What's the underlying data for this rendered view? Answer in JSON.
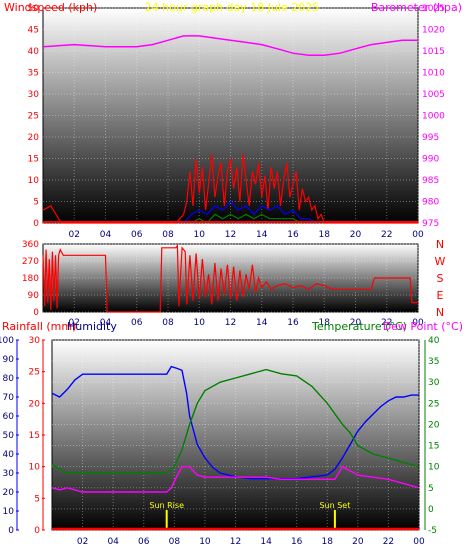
{
  "title": "24 hour graph day   18 Jule 2025",
  "colors": {
    "wind": "#ff0000",
    "gust": "#ff0000",
    "wind_mid": "#0000ff",
    "wind_low": "#008000",
    "barometer": "#ff00ff",
    "direction": "#ff0000",
    "humidity": "#0000ff",
    "temperature": "#008000",
    "dewpoint": "#ff00ff",
    "rain": "#ff0000",
    "title": "#ffff00",
    "sun_marker": "#ffff00"
  },
  "chart_data": [
    {
      "type": "line",
      "title": "24 hour graph day   18 Jule 2025",
      "ylabel": "Windspeed (kph)",
      "y2label": "Barometer (hpa)",
      "x_ticks": [
        "02",
        "04",
        "06",
        "08",
        "10",
        "12",
        "14",
        "16",
        "18",
        "20",
        "22",
        "00"
      ],
      "ylim": [
        0,
        50
      ],
      "yticks": [
        "0",
        "5",
        "10",
        "15",
        "20",
        "25",
        "30",
        "35",
        "40",
        "45",
        "50"
      ],
      "y2lim": [
        975,
        1025
      ],
      "y2ticks": [
        "975",
        "980",
        "985",
        "990",
        "995",
        "1000",
        "1005",
        "1010",
        "1015",
        "1020",
        "1025"
      ],
      "series": [
        {
          "name": "Barometer",
          "axis": "right",
          "x": [
            0,
            2,
            4,
            6,
            7,
            8,
            9,
            10,
            11,
            12,
            13,
            14,
            15,
            16,
            17,
            18,
            19,
            20,
            21,
            22,
            23,
            24
          ],
          "y": [
            1016,
            1016.5,
            1016,
            1016,
            1016.5,
            1017.5,
            1018.5,
            1018.5,
            1018,
            1017.5,
            1017,
            1016.5,
            1015.5,
            1014.5,
            1014,
            1014,
            1014.5,
            1015.5,
            1016.5,
            1017,
            1017.5,
            1017.5
          ]
        },
        {
          "name": "Gust",
          "axis": "left",
          "x": [
            0,
            0.5,
            1,
            1.2,
            7.5,
            8.5,
            9.0,
            9.2,
            9.4,
            9.6,
            9.8,
            10,
            10.2,
            10.4,
            10.6,
            10.8,
            11,
            11.2,
            11.4,
            11.6,
            11.8,
            12,
            12.2,
            12.4,
            12.6,
            12.8,
            13,
            13.2,
            13.4,
            13.6,
            13.8,
            14,
            14.2,
            14.4,
            14.6,
            14.8,
            15,
            15.2,
            15.4,
            15.6,
            15.8,
            16,
            16.2,
            16.4,
            16.6,
            16.8,
            17,
            17.2,
            17.4,
            17.6,
            17.8,
            18,
            24
          ],
          "y": [
            3,
            4,
            1,
            0,
            0,
            0,
            2,
            5,
            12,
            4,
            15,
            7,
            13,
            3,
            9,
            16,
            6,
            11,
            14,
            4,
            12,
            15,
            8,
            13,
            5,
            16,
            10,
            4,
            12,
            9,
            14,
            6,
            11,
            3,
            13,
            8,
            12,
            4,
            10,
            14,
            6,
            9,
            12,
            3,
            8,
            5,
            6,
            3,
            4,
            1,
            2,
            0,
            0
          ]
        },
        {
          "name": "Wind Mid",
          "axis": "left",
          "x": [
            9.0,
            9.5,
            10,
            10.5,
            11,
            11.5,
            12,
            12.5,
            13,
            13.5,
            14,
            14.5,
            15,
            15.5,
            16,
            16.5,
            17,
            17.5
          ],
          "y": [
            0,
            2,
            3,
            2,
            4,
            3,
            5,
            3,
            4,
            2,
            4,
            3,
            4,
            2,
            3,
            1,
            1,
            0
          ]
        },
        {
          "name": "Wind Low",
          "axis": "left",
          "x": [
            9.5,
            10,
            10.5,
            11,
            11.5,
            12,
            12.5,
            13,
            13.5,
            14,
            14.5,
            15,
            15.5,
            16,
            16.5
          ],
          "y": [
            0,
            1,
            0,
            2,
            1,
            2,
            1,
            2,
            1,
            2,
            1,
            1,
            1,
            1,
            0
          ]
        }
      ]
    },
    {
      "type": "line",
      "title": "",
      "dir_labels": [
        "N",
        "W",
        "S",
        "E",
        "N"
      ],
      "x_ticks": [
        "02",
        "04",
        "06",
        "08",
        "10",
        "12",
        "14",
        "16",
        "18",
        "20",
        "22",
        "00"
      ],
      "ylim": [
        0,
        360
      ],
      "yticks": [
        "0",
        "90",
        "180",
        "270",
        "360"
      ],
      "series": [
        {
          "name": "Wind Direction",
          "x": [
            0,
            0.1,
            0.2,
            0.3,
            0.4,
            0.5,
            0.6,
            0.7,
            0.8,
            0.9,
            1.0,
            1.1,
            1.3,
            1.5,
            4.0,
            4.1,
            7.5,
            7.6,
            8.5,
            8.6,
            8.7,
            8.9,
            9.1,
            9.2,
            9.4,
            9.6,
            9.8,
            10,
            10.2,
            10.4,
            10.6,
            10.8,
            11,
            11.2,
            11.4,
            11.6,
            11.8,
            12,
            12.2,
            12.4,
            12.6,
            12.8,
            13,
            13.2,
            13.4,
            13.6,
            13.8,
            14,
            14.3,
            14.6,
            15,
            15.5,
            16,
            16.5,
            17,
            17.5,
            18,
            18.5,
            20,
            21,
            21.2,
            21.5,
            23.5,
            23.6,
            24
          ],
          "y": [
            300,
            30,
            330,
            50,
            280,
            10,
            320,
            60,
            300,
            20,
            300,
            330,
            300,
            300,
            300,
            0,
            0,
            340,
            340,
            350,
            30,
            340,
            320,
            40,
            300,
            60,
            310,
            70,
            280,
            80,
            200,
            40,
            260,
            60,
            230,
            90,
            250,
            70,
            240,
            60,
            220,
            80,
            200,
            120,
            250,
            100,
            180,
            130,
            160,
            120,
            140,
            150,
            130,
            140,
            120,
            150,
            140,
            120,
            120,
            120,
            180,
            180,
            180,
            50,
            50
          ]
        }
      ]
    },
    {
      "type": "line",
      "title": "",
      "ylabel": "Rainfall (mm)",
      "y_humidity_label": "Humidity",
      "y2label": "Temperature (°C)",
      "y2_dew_label": "Dew Point (°C)",
      "x_ticks": [
        "02",
        "04",
        "06",
        "08",
        "10",
        "12",
        "14",
        "16",
        "18",
        "20",
        "22",
        "00"
      ],
      "rain_lim": [
        0,
        30
      ],
      "rain_ticks": [
        "0",
        "5",
        "10",
        "15",
        "20",
        "25",
        "30"
      ],
      "humidity_lim": [
        0,
        100
      ],
      "humidity_ticks": [
        "0",
        "10",
        "20",
        "30",
        "40",
        "50",
        "60",
        "70",
        "80",
        "90",
        "100"
      ],
      "temp_lim": [
        -5,
        40
      ],
      "temp_ticks": [
        "-5",
        "0",
        "5",
        "10",
        "15",
        "20",
        "25",
        "30",
        "35",
        "40"
      ],
      "annotations": [
        {
          "label": "Sun Rise",
          "x": 7.5
        },
        {
          "label": "Sun Set",
          "x": 18.5
        }
      ],
      "series": [
        {
          "name": "Humidity",
          "axis": "humidity",
          "x": [
            0,
            0.5,
            1,
            1.5,
            2,
            3,
            4,
            5,
            6,
            7,
            7.5,
            7.8,
            8.2,
            8.5,
            8.8,
            9.0,
            9.5,
            10,
            10.5,
            11,
            11.5,
            12,
            13,
            14,
            15,
            16,
            17,
            18,
            18.5,
            19,
            19.5,
            20,
            20.5,
            21,
            21.5,
            22,
            22.5,
            23,
            23.5,
            24
          ],
          "y": [
            72,
            70,
            74,
            79,
            82,
            82,
            82,
            82,
            82,
            82,
            82,
            86,
            85,
            84,
            72,
            60,
            45,
            38,
            33,
            30,
            29,
            28,
            27,
            27,
            27,
            27,
            28,
            29,
            32,
            38,
            45,
            52,
            57,
            61,
            65,
            68,
            70,
            70,
            71,
            71
          ]
        },
        {
          "name": "Temperature",
          "axis": "temp",
          "x": [
            0,
            1,
            2,
            3,
            4,
            5,
            6,
            7,
            7.5,
            8,
            8.5,
            9,
            9.5,
            10,
            11,
            12,
            13,
            14,
            15,
            16,
            17,
            18,
            19,
            19.5,
            20,
            21,
            22,
            23,
            24
          ],
          "y": [
            10.5,
            8.5,
            8.5,
            8.5,
            8.5,
            8.5,
            8.5,
            8.5,
            8.5,
            10,
            14,
            20,
            25,
            28,
            30,
            31,
            32,
            33,
            32,
            31.5,
            29,
            25,
            20,
            18,
            15,
            13,
            12,
            11,
            10
          ]
        },
        {
          "name": "Dew Point",
          "axis": "temp",
          "x": [
            0,
            0.5,
            1,
            2,
            3,
            4,
            5,
            6,
            7,
            7.5,
            7.8,
            8.2,
            8.5,
            9,
            9.5,
            10,
            11,
            12,
            13,
            14,
            15,
            16,
            17,
            18,
            18.5,
            19,
            19.5,
            20,
            21,
            22,
            23,
            24
          ],
          "y": [
            5,
            4.5,
            5,
            4,
            4,
            4,
            4,
            4,
            4,
            4,
            5,
            8,
            10,
            10,
            8,
            7.5,
            7.5,
            7.5,
            7.5,
            7.5,
            7,
            7,
            7,
            7,
            7,
            10,
            9,
            8,
            7.5,
            7,
            6,
            5
          ]
        },
        {
          "name": "Rainfall",
          "axis": "rain",
          "x": [
            0,
            24
          ],
          "y": [
            0,
            0
          ]
        }
      ]
    }
  ]
}
